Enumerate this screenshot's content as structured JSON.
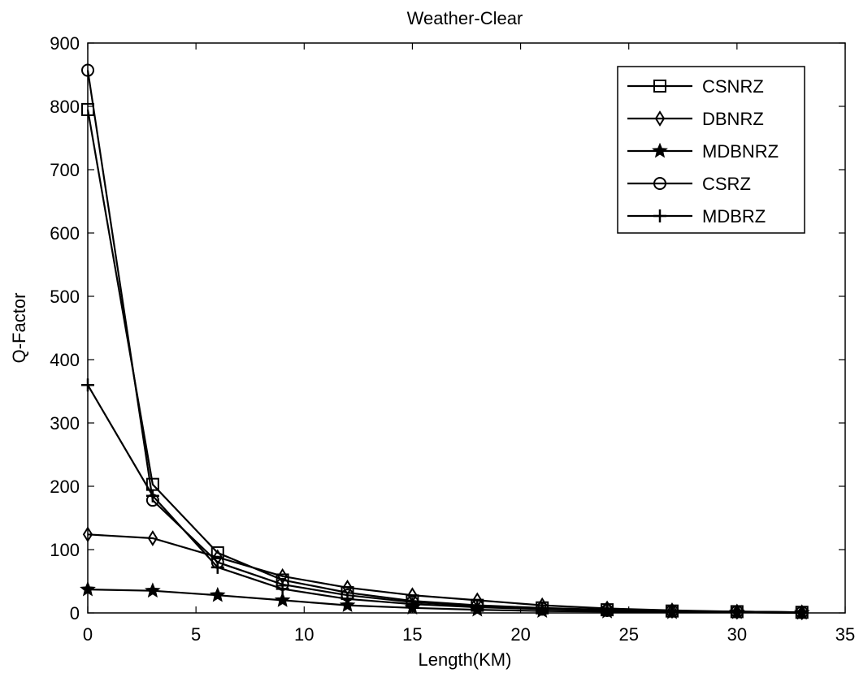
{
  "chart_data": {
    "type": "line",
    "title": "Weather-Clear",
    "xlabel": "Length(KM)",
    "ylabel": "Q-Factor",
    "xlim": [
      0,
      35
    ],
    "ylim": [
      0,
      900
    ],
    "xticks": [
      0,
      5,
      10,
      15,
      20,
      25,
      30,
      35
    ],
    "yticks": [
      0,
      100,
      200,
      300,
      400,
      500,
      600,
      700,
      800,
      900
    ],
    "grid": false,
    "legend_position": "top-right",
    "x": [
      0,
      3,
      6,
      9,
      12,
      15,
      18,
      21,
      24,
      27,
      30,
      33
    ],
    "series": [
      {
        "name": "CSNRZ",
        "marker": "square",
        "values": [
          795,
          203,
          95,
          52,
          32,
          19,
          12,
          8,
          5,
          3,
          2,
          1
        ]
      },
      {
        "name": "DBNRZ",
        "marker": "diamond",
        "values": [
          124,
          118,
          88,
          58,
          40,
          28,
          20,
          12,
          7,
          4,
          2,
          1
        ]
      },
      {
        "name": "MDBNRZ",
        "marker": "star",
        "values": [
          37,
          35,
          28,
          20,
          12,
          8,
          5,
          3,
          2,
          1,
          1,
          0
        ]
      },
      {
        "name": "CSRZ",
        "marker": "circle",
        "values": [
          857,
          178,
          80,
          45,
          28,
          17,
          11,
          7,
          4,
          3,
          2,
          1
        ]
      },
      {
        "name": "MDBRZ",
        "marker": "plus",
        "values": [
          360,
          185,
          72,
          38,
          22,
          14,
          9,
          6,
          4,
          2,
          1,
          0
        ]
      }
    ],
    "color": "#000000"
  }
}
